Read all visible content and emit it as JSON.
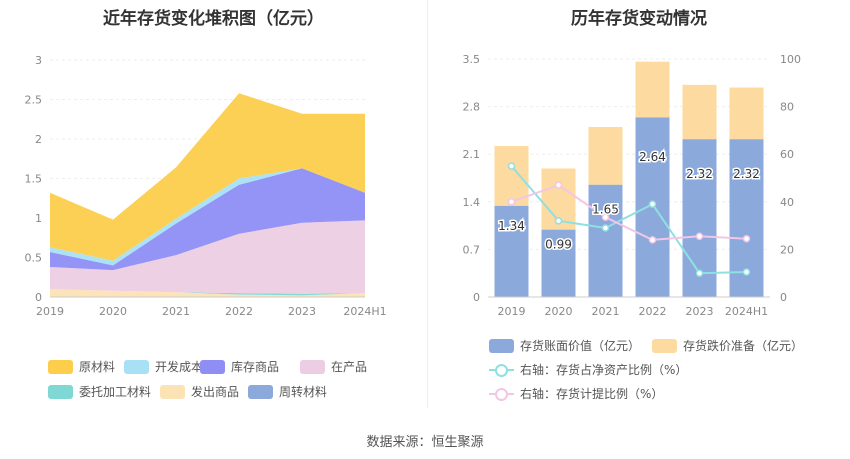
{
  "source": "数据来源：恒生聚源",
  "chart_data": [
    {
      "type": "area",
      "stacked": true,
      "title": "近年存货变化堆积图（亿元）",
      "categories": [
        "2019",
        "2020",
        "2021",
        "2022",
        "2023",
        "2024H1"
      ],
      "yticks": [
        "0",
        "0.5",
        "1",
        "1.5",
        "2",
        "2.5",
        "3"
      ],
      "ylim": [
        0,
        3
      ],
      "series": [
        {
          "name": "原材料",
          "color": "#FCCE4B",
          "values": [
            0.69,
            0.52,
            0.65,
            1.08,
            0.69,
            1.0
          ]
        },
        {
          "name": "开发成本",
          "color": "#A8E0F5",
          "values": [
            0.06,
            0.06,
            0.06,
            0.08,
            0.0,
            0.0
          ]
        },
        {
          "name": "库存商品",
          "color": "#8E8EF5",
          "values": [
            0.19,
            0.06,
            0.4,
            0.62,
            0.69,
            0.35
          ]
        },
        {
          "name": "在产品",
          "color": "#EDCDE3",
          "values": [
            0.28,
            0.26,
            0.47,
            0.75,
            0.9,
            0.92
          ]
        },
        {
          "name": "委托加工材料",
          "color": "#7FD8D4",
          "values": [
            0.0,
            0.0,
            0.0,
            0.02,
            0.02,
            0.0
          ]
        },
        {
          "name": "发出商品",
          "color": "#FCE3B5",
          "values": [
            0.1,
            0.08,
            0.06,
            0.03,
            0.02,
            0.05
          ]
        },
        {
          "name": "周转材料",
          "color": "#8CA9DB",
          "values": [
            0.0,
            0.0,
            0.0,
            0.0,
            0.0,
            0.0
          ]
        }
      ],
      "legend_order": [
        "原材料",
        "开发成本",
        "库存商品",
        "在产品",
        "委托加工材料",
        "发出商品",
        "周转材料"
      ]
    },
    {
      "type": "bar",
      "stacked": true,
      "title": "历年存货变动情况",
      "categories": [
        "2019",
        "2020",
        "2021",
        "2022",
        "2023",
        "2024H1"
      ],
      "yticks_left": [
        "0",
        "0.7",
        "1.4",
        "2.1",
        "2.8",
        "3.5"
      ],
      "yticks_right": [
        "0",
        "20",
        "40",
        "60",
        "80",
        "100"
      ],
      "ylim_left": [
        0,
        3.5
      ],
      "ylim_right": [
        0,
        100
      ],
      "series": [
        {
          "name": "存货账面价值（亿元）",
          "color": "#8CA9DB",
          "axis": "left",
          "values": [
            1.34,
            0.99,
            1.65,
            2.64,
            2.32,
            2.32
          ],
          "labels": [
            "1.34",
            "0.99",
            "1.65",
            "2.64",
            "2.32",
            "2.32"
          ]
        },
        {
          "name": "存货跌价准备（亿元）",
          "color": "#FDDA9F",
          "axis": "left",
          "values": [
            0.88,
            0.9,
            0.85,
            0.82,
            0.8,
            0.76
          ]
        },
        {
          "name": "右轴：存货占净资产比例（%）",
          "color": "#8FE0E0",
          "type": "line",
          "axis": "right",
          "values": [
            55,
            32,
            29,
            39,
            10,
            10.5
          ]
        },
        {
          "name": "右轴：存货计提比例（%）",
          "color": "#F2C6E5",
          "type": "line",
          "axis": "right",
          "values": [
            40,
            47,
            33.5,
            24,
            25.5,
            24.5
          ]
        }
      ]
    }
  ]
}
